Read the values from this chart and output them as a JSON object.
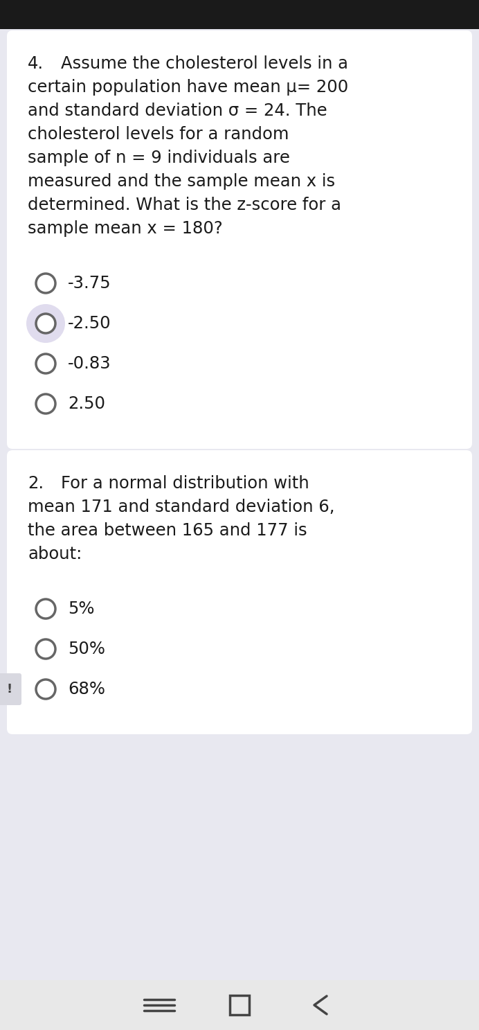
{
  "bg_color": "#e8e8f0",
  "card_color": "#ffffff",
  "text_color": "#1a1a1a",
  "q1_number": "4.",
  "q1_lines": [
    "Assume the cholesterol levels in a",
    "certain population have mean μ= 200",
    "and standard deviation σ = 24. The",
    "cholesterol levels for a random",
    "sample of n = 9 individuals are",
    "measured and the sample mean x is",
    "determined. What is the z-score for a",
    "sample mean x = 180?"
  ],
  "options1": [
    "-3.75",
    "-2.50",
    "-0.83",
    "2.50"
  ],
  "selected1": 1,
  "q2_number": "2.",
  "q2_lines": [
    "For a normal distribution with",
    "mean 171 and standard deviation 6,",
    "the area between 165 and 177 is",
    "about:"
  ],
  "options2": [
    "5%",
    "50%",
    "68%"
  ],
  "selected2": -1,
  "top_bar_color": "#1a1a1a",
  "circle_edge_color": "#666666",
  "circle_selected_bg": "#e0dcee",
  "circle_selected_edge": "#666666",
  "font_size_text": 17.5,
  "font_size_option": 17.5,
  "nav_bar_color": "#e8e8e8"
}
